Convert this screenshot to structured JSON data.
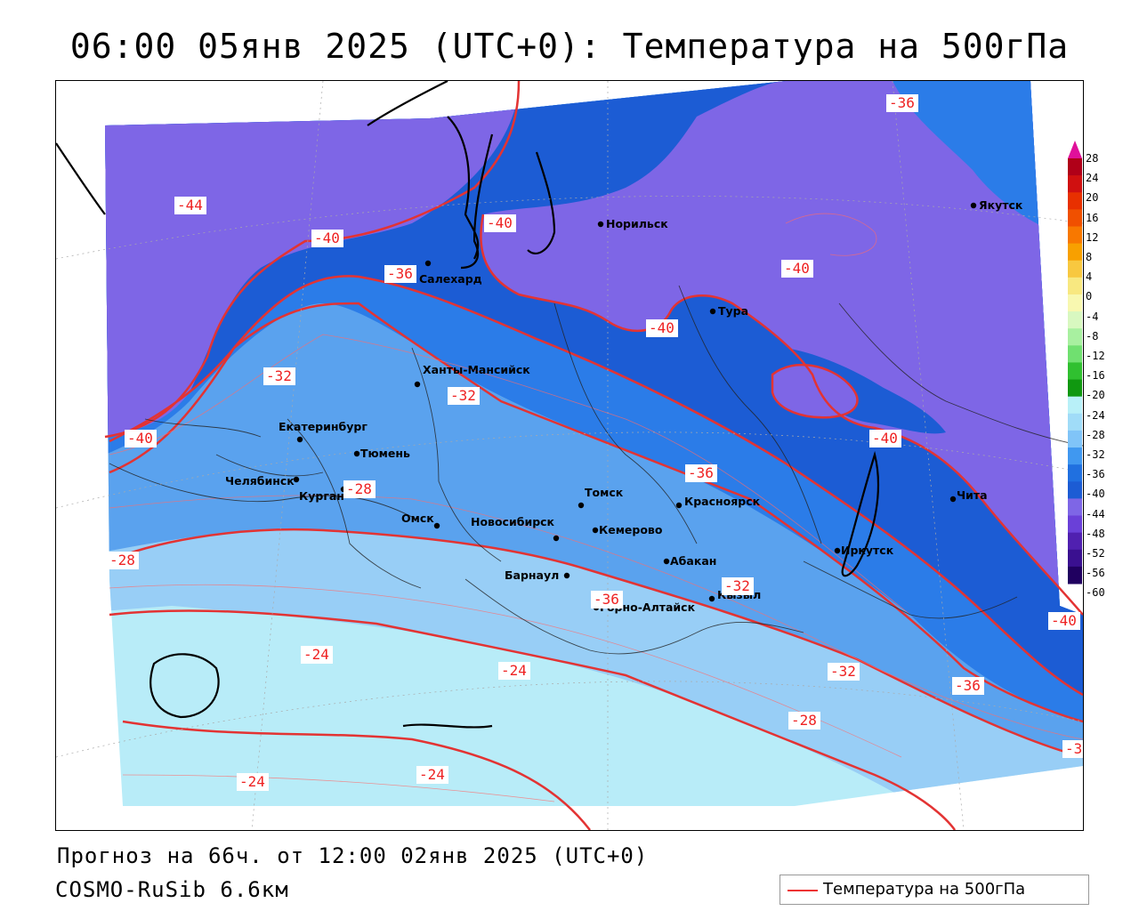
{
  "title": "06:00 05янв 2025 (UTC+0): Температура на 500гПа",
  "footer": {
    "forecast": "Прогноз на 66ч. от 12:00 02янв 2025 (UTC+0)",
    "model": "COSMO-RuSib 6.6км"
  },
  "legend": {
    "label": "Температура на 500гПа",
    "color": "#e33333"
  },
  "colorbar": {
    "ticks": [
      "28",
      "24",
      "20",
      "16",
      "12",
      "8",
      "4",
      "0",
      "-4",
      "-8",
      "-12",
      "-16",
      "-20",
      "-24",
      "-28",
      "-32",
      "-36",
      "-40",
      "-44",
      "-48",
      "-52",
      "-56",
      "-60"
    ],
    "colors": [
      "#b00018",
      "#d01010",
      "#e83000",
      "#f05000",
      "#f87800",
      "#f8a000",
      "#f8c840",
      "#f8e880",
      "#f8f8b0",
      "#d8f8c0",
      "#a8f0a0",
      "#70e070",
      "#30c030",
      "#109810",
      "#b8f0f8",
      "#a0dcf8",
      "#80c4f8",
      "#4098f0",
      "#2070e0",
      "#1c5cd4",
      "#7e66e6",
      "#6a40d8",
      "#5020b0",
      "#3a1090",
      "#200060"
    ]
  },
  "cities": [
    {
      "name": "Якутск"
    },
    {
      "name": "Норильск"
    },
    {
      "name": "Салехард"
    },
    {
      "name": "Тура"
    },
    {
      "name": "Ханты-Мансийск"
    },
    {
      "name": "Екатеринбург"
    },
    {
      "name": "Тюмень"
    },
    {
      "name": "Челябинск"
    },
    {
      "name": "Курган"
    },
    {
      "name": "Омск"
    },
    {
      "name": "Томск"
    },
    {
      "name": "Новосибирск"
    },
    {
      "name": "Кемерово"
    },
    {
      "name": "Красноярск"
    },
    {
      "name": "Чита"
    },
    {
      "name": "Иркутск"
    },
    {
      "name": "Абакан"
    },
    {
      "name": "Барнаул"
    },
    {
      "name": "Горно-Алтайск"
    },
    {
      "name": "Кызыл"
    }
  ],
  "isotherm_labels": [
    "-36",
    "-44",
    "-40",
    "-40",
    "-36",
    "-40",
    "-40",
    "-32",
    "-32",
    "-40",
    "-40",
    "-36",
    "-28",
    "-28",
    "-32",
    "-36",
    "-24",
    "-24",
    "-32",
    "-36",
    "-28",
    "-24",
    "-24",
    "-40",
    "-3"
  ],
  "zone_colors": {
    "lt_minus40": "#7e66e6",
    "m40_m36": "#1c5cd4",
    "m36_m32": "#2b7ce8",
    "m32_m28": "#5aa2ee",
    "m28_m24": "#98cef6",
    "gt_minus24": "#b8ecf8",
    "green_patch": "#1f9a2a",
    "isotherm_line": "#e33333"
  }
}
